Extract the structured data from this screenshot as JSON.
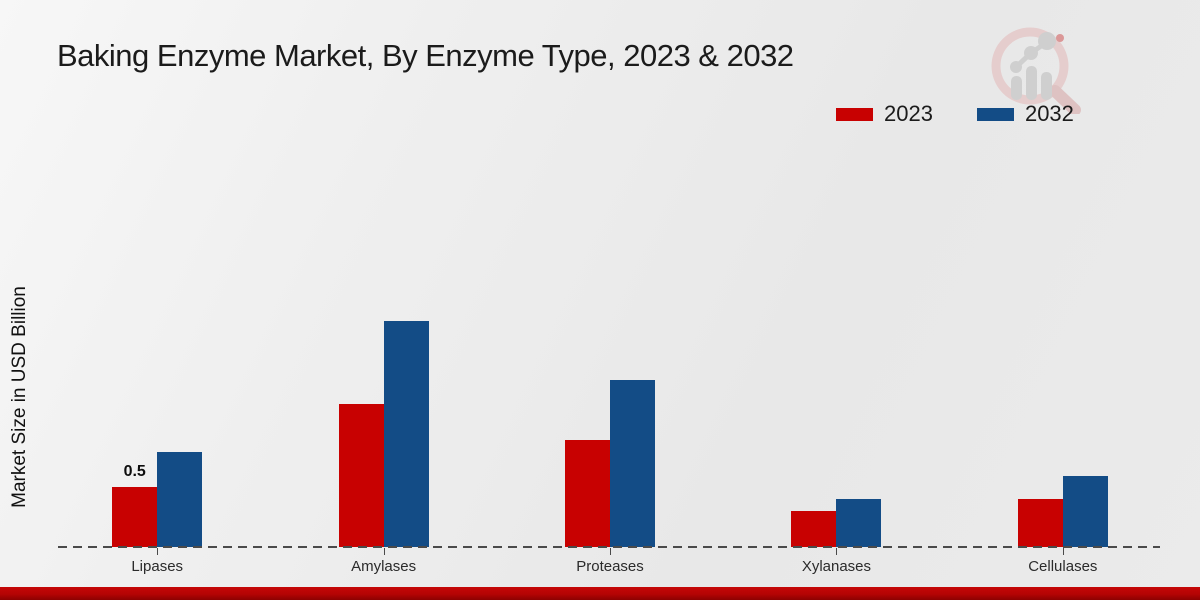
{
  "title": "Baking Enzyme Market, By Enzyme Type, 2023 & 2032",
  "y_axis_label": "Market Size in USD Billion",
  "legend": [
    {
      "label": "2023",
      "color": "#c80101"
    },
    {
      "label": "2032",
      "color": "#134c86"
    }
  ],
  "chart_data": {
    "type": "bar",
    "title": "Baking Enzyme Market, By Enzyme Type, 2023 & 2032",
    "categories": [
      "Lipases",
      "Amylases",
      "Proteases",
      "Xylanases",
      "Cellulases"
    ],
    "series": [
      {
        "name": "2023",
        "color": "#c80101",
        "values": [
          0.5,
          1.2,
          0.9,
          0.3,
          0.4
        ]
      },
      {
        "name": "2032",
        "color": "#134c86",
        "values": [
          0.8,
          1.9,
          1.4,
          0.4,
          0.6
        ]
      }
    ],
    "bar_labels": [
      {
        "category": "Lipases",
        "series": "2023",
        "text": "0.5"
      }
    ],
    "xlabel": "",
    "ylabel": "Market Size in USD Billion",
    "ylim": [
      0,
      2.0
    ],
    "grid": false,
    "axis_style": "dashed-baseline-only",
    "legend_position": "top-right"
  },
  "colors": {
    "series_2023": "#c80101",
    "series_2032": "#134c86",
    "baseline": "#4a4a4a",
    "bottom_strip": "#b40404",
    "background": "#ececec"
  },
  "watermark": {
    "icon": "magnifier-bar-chart-logo"
  }
}
